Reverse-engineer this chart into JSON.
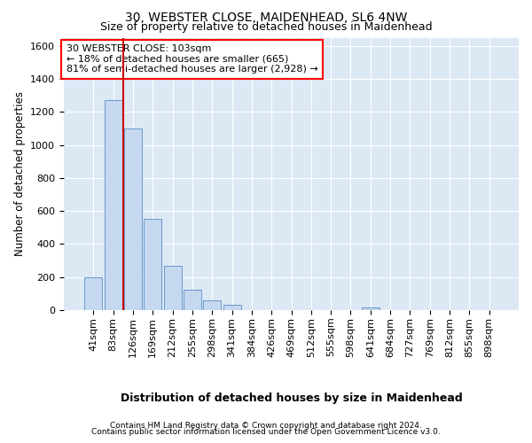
{
  "title1": "30, WEBSTER CLOSE, MAIDENHEAD, SL6 4NW",
  "title2": "Size of property relative to detached houses in Maidenhead",
  "xlabel": "Distribution of detached houses by size in Maidenhead",
  "ylabel": "Number of detached properties",
  "categories": [
    "41sqm",
    "83sqm",
    "126sqm",
    "169sqm",
    "212sqm",
    "255sqm",
    "298sqm",
    "341sqm",
    "384sqm",
    "426sqm",
    "469sqm",
    "512sqm",
    "555sqm",
    "598sqm",
    "641sqm",
    "684sqm",
    "727sqm",
    "769sqm",
    "812sqm",
    "855sqm",
    "898sqm"
  ],
  "values": [
    200,
    1270,
    1100,
    555,
    270,
    125,
    60,
    30,
    0,
    0,
    0,
    0,
    0,
    0,
    15,
    0,
    0,
    0,
    0,
    0,
    0
  ],
  "bar_color": "#c5d8f0",
  "bar_edge_color": "#6699cc",
  "annotation_line1": "30 WEBSTER CLOSE: 103sqm",
  "annotation_line2": "← 18% of detached houses are smaller (665)",
  "annotation_line3": "81% of semi-detached houses are larger (2,928) →",
  "ylim": [
    0,
    1650
  ],
  "yticks": [
    0,
    200,
    400,
    600,
    800,
    1000,
    1200,
    1400,
    1600
  ],
  "footer1": "Contains HM Land Registry data © Crown copyright and database right 2024.",
  "footer2": "Contains public sector information licensed under the Open Government Licence v3.0.",
  "plot_bg": "#dde8f5",
  "fig_bg": "white",
  "vline_color": "#cc0000",
  "title1_fontsize": 10,
  "title2_fontsize": 9,
  "xlabel_fontsize": 9,
  "ylabel_fontsize": 8.5,
  "tick_fontsize": 8,
  "annotation_fontsize": 8,
  "footer_fontsize": 6.5
}
